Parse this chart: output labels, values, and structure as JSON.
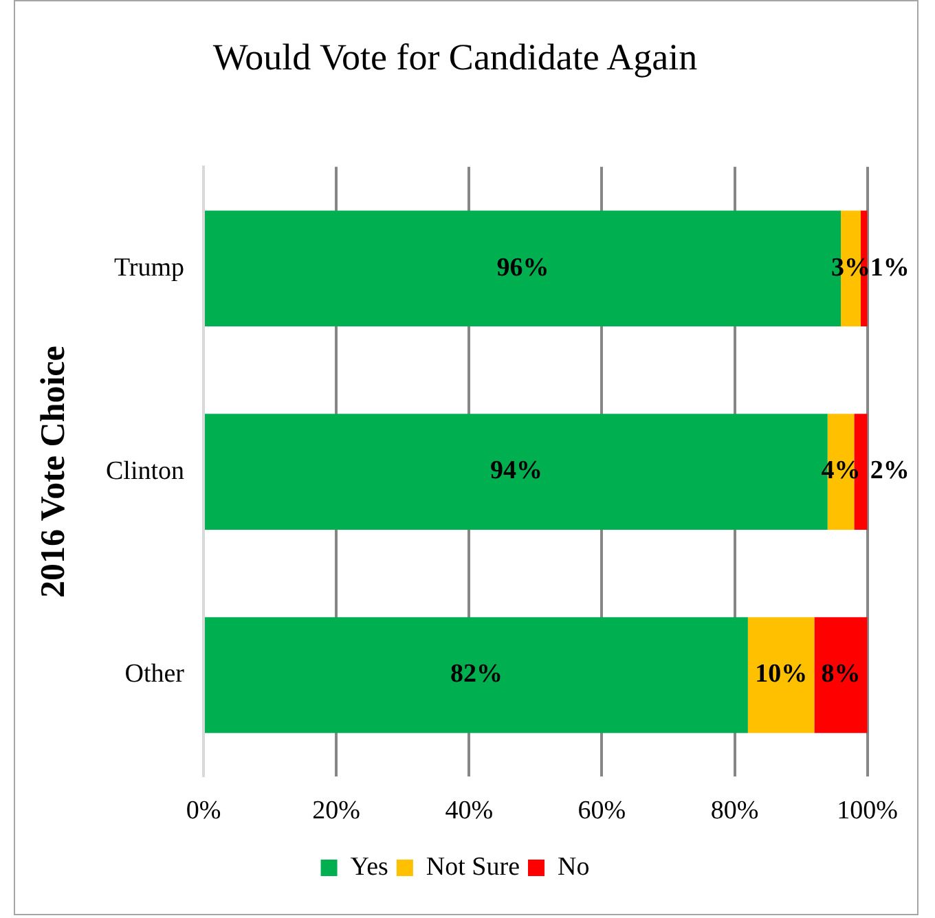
{
  "chart_data": {
    "type": "bar",
    "orientation": "horizontal",
    "stacked": true,
    "title": "Would Vote for Candidate Again",
    "ylabel": "2016 Vote Choice",
    "categories": [
      "Trump",
      "Clinton",
      "Other"
    ],
    "series": [
      {
        "name": "Yes",
        "color": "#00b050",
        "values": [
          96,
          94,
          82
        ],
        "value_labels": [
          "96%",
          "94%",
          "82%"
        ]
      },
      {
        "name": "Not Sure",
        "color": "#ffc000",
        "values": [
          3,
          4,
          10
        ],
        "value_labels": [
          "3%",
          "4%",
          "10%"
        ]
      },
      {
        "name": "No",
        "color": "#ff0000",
        "values": [
          1,
          2,
          8
        ],
        "value_labels": [
          "1%",
          "2%",
          "8%"
        ]
      }
    ],
    "xlim": [
      0,
      100
    ],
    "xticks": [
      {
        "value": 0,
        "label": "0%"
      },
      {
        "value": 20,
        "label": "20%"
      },
      {
        "value": 40,
        "label": "40%"
      },
      {
        "value": 60,
        "label": "60%"
      },
      {
        "value": 80,
        "label": "80%"
      },
      {
        "value": 100,
        "label": "100%"
      }
    ],
    "grid": "x",
    "legend": "bottom"
  }
}
